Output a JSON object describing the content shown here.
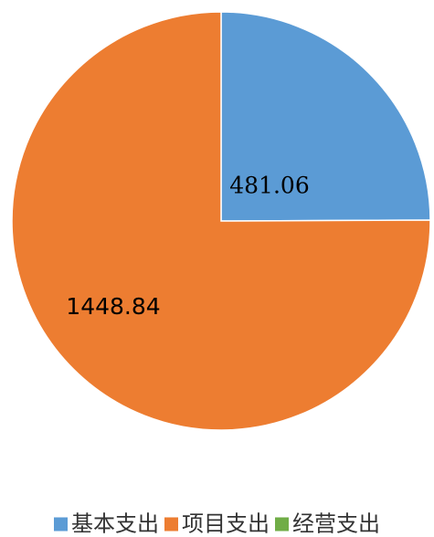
{
  "chart_data": {
    "type": "pie",
    "slices": [
      {
        "name": "基本支出",
        "value": 481.06,
        "label": "481.06",
        "color": "#5B9BD5"
      },
      {
        "name": "项目支出",
        "value": 1448.84,
        "label": "1448.84",
        "color": "#ED7D31"
      },
      {
        "name": "经营支出",
        "value": 0,
        "label": "",
        "color": "#70AD47"
      }
    ],
    "legend": {
      "position": "bottom",
      "items": [
        {
          "label": "基本支出",
          "color": "#5B9BD5"
        },
        {
          "label": "项目支出",
          "color": "#ED7D31"
        },
        {
          "label": "经营支出",
          "color": "#70AD47"
        }
      ]
    }
  }
}
